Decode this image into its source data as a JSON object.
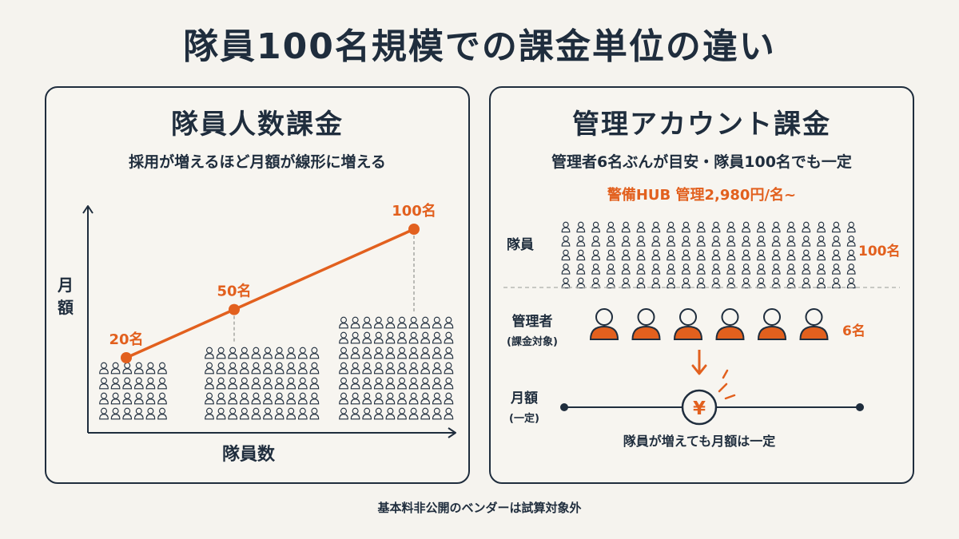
{
  "title": "隊員100名規模での課金単位の違い",
  "left_panel": {
    "title": "隊員人数課金",
    "subtitle": "採用が増えるほど月額が線形に増える",
    "y_axis_label": "月額",
    "x_axis_label": "隊員数"
  },
  "right_panel": {
    "title": "管理アカウント課金",
    "subtitle": "管理者6名ぶんが目安・隊員100名でも一定",
    "price_note": "警備HUB 管理2,980円/名~",
    "members_label": "隊員",
    "members_count": "100名",
    "admins_label": "管理者",
    "admins_sublabel": "(課金対象)",
    "admins_count": "6名",
    "monthly_label": "月額",
    "monthly_sublabel": "(一定)",
    "yen_symbol": "¥",
    "constant_caption": "隊員が増えても月額は一定",
    "member_icon_count": 100,
    "admin_icon_count": 6
  },
  "chart_data": {
    "type": "line",
    "series": [
      {
        "points": [
          {
            "members": 20,
            "label": "20名"
          },
          {
            "members": 50,
            "label": "50名"
          },
          {
            "members": 100,
            "label": "100名"
          }
        ]
      }
    ],
    "xlabel": "隊員数",
    "ylabel": "月額",
    "grid": false,
    "accent_color": "#e2601e"
  },
  "footnote": "基本料非公開のベンダーは試算対象外",
  "colors": {
    "navy": "#1f2d3d",
    "orange": "#e2601e",
    "background": "#f5f3ee"
  }
}
